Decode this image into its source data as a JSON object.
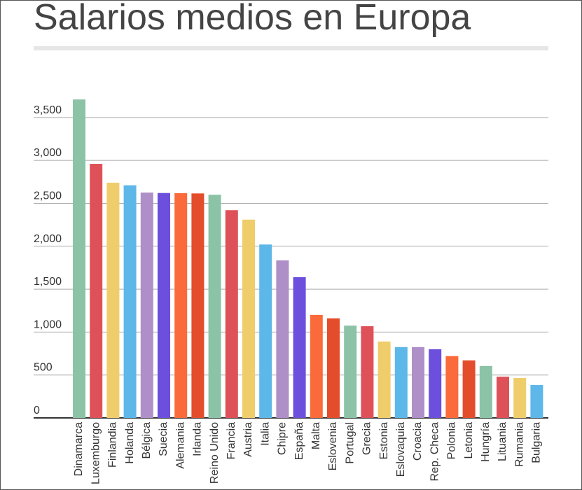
{
  "chart_data": {
    "type": "bar",
    "title": "Salarios medios en Europa",
    "categories": [
      "Dinamarca",
      "Luxemburgo",
      "Finlandia",
      "Holanda",
      "Bélgica",
      "Suecia",
      "Alemania",
      "Irlanda",
      "Reino Unido",
      "Francia",
      "Austria",
      "Italia",
      "Chipre",
      "España",
      "Malta",
      "Eslovenia",
      "Portugal",
      "Grecia",
      "Estonia",
      "Eslovaquia",
      "Croacia",
      "Rep. Checa",
      "Polonia",
      "Letonia",
      "Hungría",
      "Lituania",
      "Rumania",
      "Bulgaria"
    ],
    "values": [
      3710,
      2960,
      2740,
      2710,
      2625,
      2620,
      2618,
      2615,
      2600,
      2420,
      2310,
      2020,
      1835,
      1640,
      1200,
      1160,
      1075,
      1068,
      890,
      825,
      825,
      800,
      720,
      670,
      605,
      480,
      465,
      383
    ],
    "colors": [
      "#8cc3a6",
      "#de5159",
      "#f0cd6b",
      "#5db7e8",
      "#ae8fc8",
      "#6c4fdc",
      "#fb6a3a",
      "#e44d2b",
      "#8cc3a6",
      "#de5159",
      "#f0cd6b",
      "#5db7e8",
      "#ae8fc8",
      "#6c4fdc",
      "#fb6a3a",
      "#e44d2b",
      "#8cc3a6",
      "#de5159",
      "#f0cd6b",
      "#5db7e8",
      "#ae8fc8",
      "#6c4fdc",
      "#fb6a3a",
      "#e44d2b",
      "#8cc3a6",
      "#de5159",
      "#f0cd6b",
      "#5db7e8"
    ],
    "ylim": [
      0,
      4000
    ],
    "yticks": [
      0,
      500,
      {
        "value": 1000,
        "label": "1,000"
      },
      {
        "value": 1500,
        "label": "1,500"
      },
      {
        "value": 2000,
        "label": "2,000"
      },
      {
        "value": 2500,
        "label": "2,500"
      },
      {
        "value": 3000,
        "label": "3,000"
      },
      {
        "value": 3500,
        "label": "3,500"
      }
    ],
    "grid": true
  }
}
